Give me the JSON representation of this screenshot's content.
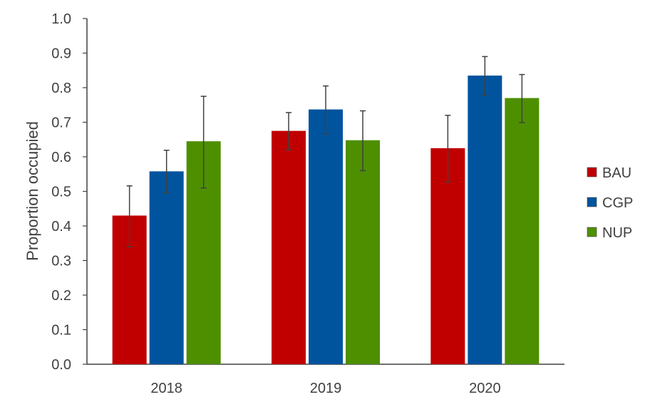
{
  "chart_data": {
    "type": "bar",
    "title": "",
    "xlabel": "",
    "ylabel": "Proportion occupied",
    "ylim": [
      0,
      1.0
    ],
    "yticks": [
      "0.0",
      "0.1",
      "0.2",
      "0.3",
      "0.4",
      "0.5",
      "0.6",
      "0.7",
      "0.8",
      "0.9",
      "1.0"
    ],
    "categories": [
      "2018",
      "2019",
      "2020"
    ],
    "grid": false,
    "legend_position": "right",
    "series": [
      {
        "name": "BAU",
        "color": "#c00000",
        "values": [
          0.43,
          0.675,
          0.625
        ],
        "error_low": [
          0.34,
          0.62,
          0.527
        ],
        "error_high": [
          0.516,
          0.728,
          0.72
        ]
      },
      {
        "name": "CGP",
        "color": "#00549e",
        "values": [
          0.558,
          0.737,
          0.835
        ],
        "error_low": [
          0.496,
          0.666,
          0.778
        ],
        "error_high": [
          0.619,
          0.805,
          0.89
        ]
      },
      {
        "name": "NUP",
        "color": "#4e8f00",
        "values": [
          0.645,
          0.648,
          0.77
        ],
        "error_low": [
          0.51,
          0.56,
          0.699
        ],
        "error_high": [
          0.775,
          0.733,
          0.838
        ]
      }
    ]
  }
}
